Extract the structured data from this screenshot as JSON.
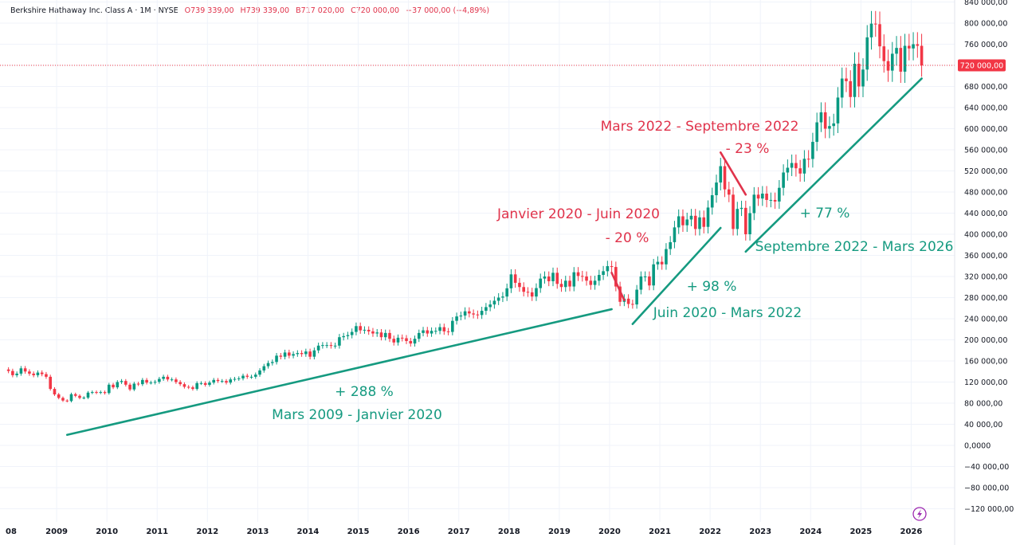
{
  "header": {
    "symbol": "Berkshire Hathaway Inc. Class A · 1M · NYSE",
    "open": "O739 339,00",
    "high": "H739 339,00",
    "low": "B717 020,00",
    "close": "C720 000,00",
    "change": "−37 000,00 (−4,89%)"
  },
  "colors": {
    "up": "#089981",
    "down": "#f23645",
    "annotation_green": "#159a80",
    "annotation_red": "#e0334b",
    "price_line": "#f23645"
  },
  "icons": {
    "bottom_right": "lightning-icon"
  },
  "chart_data": {
    "type": "candlestick",
    "interval": "1M",
    "start": "2008-01",
    "closes": [
      141000,
      133000,
      136000,
      146000,
      140000,
      136000,
      133000,
      138000,
      135000,
      130000,
      107000,
      96600,
      90000,
      85000,
      84000,
      97000,
      94000,
      90000,
      90500,
      100000,
      101000,
      100000,
      101000,
      99200,
      115000,
      110000,
      120000,
      122000,
      115000,
      106000,
      117000,
      116000,
      124000,
      119000,
      119000,
      120450,
      126000,
      130000,
      125000,
      125000,
      120000,
      116000,
      111000,
      110000,
      107000,
      118000,
      118000,
      114755,
      119000,
      124000,
      122000,
      122000,
      119000,
      125000,
      126000,
      127000,
      132000,
      130000,
      130000,
      134060,
      142000,
      150000,
      156000,
      158000,
      170000,
      168000,
      176000,
      170000,
      173000,
      175000,
      173000,
      177900,
      168000,
      180000,
      189000,
      190000,
      190000,
      189000,
      189000,
      205000,
      207000,
      209000,
      215000,
      226000,
      218000,
      219000,
      216000,
      212000,
      214000,
      205000,
      213000,
      202000,
      195000,
      204000,
      203000,
      197800,
      193000,
      202000,
      213000,
      218000,
      212000,
      217000,
      217000,
      224000,
      216000,
      215000,
      236000,
      244300,
      246000,
      254000,
      250000,
      248000,
      247000,
      255000,
      262000,
      267000,
      274000,
      280000,
      282000,
      297600,
      324000,
      308000,
      300000,
      291000,
      290000,
      282000,
      298000,
      316000,
      320000,
      311000,
      327000,
      306000,
      300000,
      312000,
      301000,
      328000,
      321000,
      320000,
      312000,
      304000,
      312000,
      323000,
      330000,
      339590,
      338000,
      301000,
      272000,
      278000,
      268000,
      267000,
      295000,
      320000,
      320000,
      303000,
      343000,
      347815,
      343000,
      372000,
      385000,
      413000,
      434000,
      417000,
      428000,
      435000,
      410000,
      432000,
      414000,
      450662,
      474000,
      498000,
      529000,
      485000,
      475000,
      410000,
      448000,
      450000,
      400000,
      440000,
      475000,
      467700,
      477000,
      465000,
      465000,
      462000,
      488000,
      517000,
      526000,
      535000,
      525000,
      515000,
      543000,
      542625,
      575000,
      612000,
      631000,
      600000,
      605000,
      610000,
      659000,
      695000,
      690000,
      660000,
      723000,
      680000,
      712000,
      773000,
      799000,
      798000,
      756000,
      728000,
      710000,
      742000,
      753000,
      708000,
      757000,
      752000,
      760000,
      757000,
      720000
    ],
    "last_price": 720000,
    "last_price_label": "720 000,00",
    "y_ticks": [
      840000,
      800000,
      760000,
      720000,
      680000,
      640000,
      600000,
      560000,
      520000,
      480000,
      440000,
      400000,
      360000,
      320000,
      280000,
      240000,
      200000,
      160000,
      120000,
      80000,
      40000,
      0,
      -40000,
      -80000,
      -120000
    ],
    "y_tick_labels": [
      "840 000,00",
      "800 000,00",
      "760 000,00",
      "",
      "680 000,00",
      "640 000,00",
      "600 000,00",
      "560 000,00",
      "520 000,00",
      "480 000,00",
      "440 000,00",
      "400 000,00",
      "360 000,00",
      "320 000,00",
      "280 000,00",
      "240 000,00",
      "200 000,00",
      "160 000,00",
      "120 000,00",
      "80 000,00",
      "40 000,00",
      "0,0000",
      "−40 000,00",
      "−80 000,00",
      "−120 000,00"
    ],
    "x_ticks": [
      "08",
      "2009",
      "2010",
      "2011",
      "2012",
      "2013",
      "2014",
      "2015",
      "2016",
      "2017",
      "2018",
      "2019",
      "2020",
      "2021",
      "2022",
      "2023",
      "2024",
      "2025",
      "2026"
    ],
    "ylim": [
      -135000,
      845000
    ],
    "grid": true,
    "annotations": [
      {
        "kind": "trend",
        "color": "green",
        "from": [
          "2009-03",
          20000
        ],
        "to": [
          "2020-01",
          258000
        ],
        "texts": [
          "+ 288 %",
          "Mars 2009 - Janvier 2020"
        ]
      },
      {
        "kind": "trend",
        "color": "red",
        "from": [
          "2020-01",
          327000
        ],
        "to": [
          "2020-04",
          275000
        ],
        "texts": [
          "Janvier 2020 - Juin 2020",
          "- 20 %"
        ]
      },
      {
        "kind": "trend",
        "color": "green",
        "from": [
          "2020-06",
          230000
        ],
        "to": [
          "2022-03",
          412000
        ],
        "texts": [
          "+ 98 %",
          "Juin 2020 - Mars 2022"
        ]
      },
      {
        "kind": "trend",
        "color": "red",
        "from": [
          "2022-03",
          555000
        ],
        "to": [
          "2022-09",
          475000
        ],
        "texts": [
          "Mars 2022 - Septembre 2022",
          "- 23 %"
        ]
      },
      {
        "kind": "trend",
        "color": "green",
        "from": [
          "2022-09",
          367000
        ],
        "to": [
          "2026-03",
          695000
        ],
        "texts": [
          "+ 77 %",
          "Septembre 2022 - Mars 2026"
        ]
      }
    ]
  }
}
